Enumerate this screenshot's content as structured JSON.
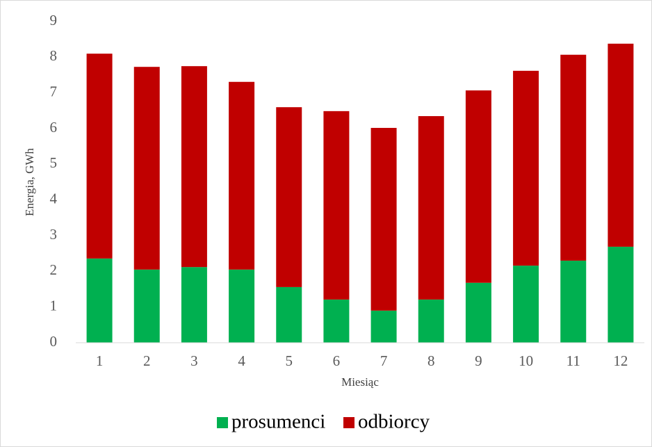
{
  "chart_data": {
    "type": "stacked_bar",
    "x_label": "Miesiąc",
    "y_label": "Energia, GWh",
    "categories": [
      "1",
      "2",
      "3",
      "4",
      "5",
      "6",
      "7",
      "8",
      "9",
      "10",
      "11",
      "12"
    ],
    "series": [
      {
        "name": "prosumenci",
        "color": "#00b050",
        "values": [
          2.36,
          2.05,
          2.12,
          2.05,
          1.56,
          1.21,
          0.9,
          1.21,
          1.68,
          2.16,
          2.3,
          2.69
        ]
      },
      {
        "name": "odbiorcy",
        "color": "#c00000",
        "values": [
          5.74,
          5.68,
          5.63,
          5.26,
          5.04,
          5.28,
          5.12,
          5.14,
          5.39,
          5.46,
          5.77,
          5.69
        ]
      }
    ],
    "ylim": [
      0,
      9
    ],
    "yticks": [
      0,
      1,
      2,
      3,
      4,
      5,
      6,
      7,
      8,
      9
    ],
    "grid": false,
    "legend": "bottom"
  }
}
